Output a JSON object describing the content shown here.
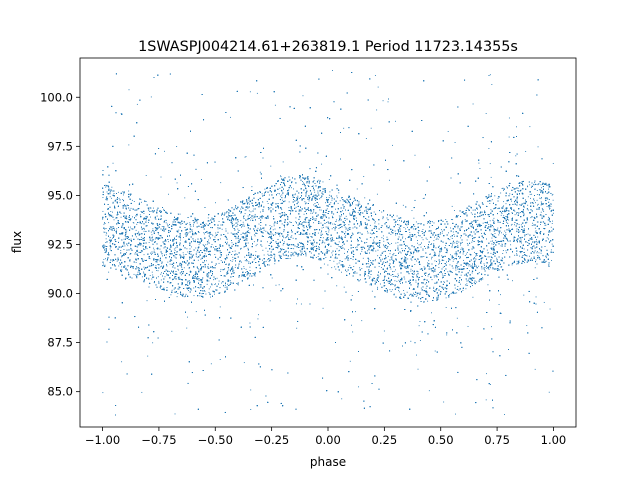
{
  "chart_data": {
    "type": "scatter",
    "title": "1SWASPJ004214.61+263819.1 Period 11723.14355s",
    "xlabel": "phase",
    "ylabel": "flux",
    "xlim": [
      -1.1,
      1.1
    ],
    "ylim": [
      83.2,
      102.0
    ],
    "xticks": [
      -1.0,
      -0.75,
      -0.5,
      -0.25,
      0.0,
      0.25,
      0.5,
      0.75,
      1.0
    ],
    "xtick_labels": [
      "−1.00",
      "−0.75",
      "−0.50",
      "−0.25",
      "0.00",
      "0.25",
      "0.50",
      "0.75",
      "1.00"
    ],
    "yticks": [
      85.0,
      87.5,
      90.0,
      92.5,
      95.0,
      97.5,
      100.0
    ],
    "ytick_labels": [
      "85.0",
      "87.5",
      "90.0",
      "92.5",
      "95.0",
      "97.5",
      "100.0"
    ],
    "grid": false,
    "marker_color": "#1f77b4",
    "series": [
      {
        "phase": [
          -1.0,
          -0.9,
          -0.8,
          -0.7,
          -0.6,
          -0.5,
          -0.4,
          -0.3,
          -0.2,
          -0.1,
          0.0,
          0.1,
          0.2,
          0.3,
          0.4,
          0.5,
          0.6,
          0.7,
          0.8,
          0.9,
          1.0
        ],
        "band_center_flux": [
          93.5,
          93.1,
          92.6,
          92.1,
          91.8,
          91.9,
          92.5,
          93.2,
          93.8,
          94.0,
          93.5,
          92.9,
          92.4,
          91.9,
          91.6,
          91.7,
          92.2,
          92.9,
          93.5,
          93.7,
          93.5
        ],
        "band_halfwidth_flux": 2.2,
        "outlier_range": [
          83.8,
          101.4
        ]
      }
    ]
  }
}
